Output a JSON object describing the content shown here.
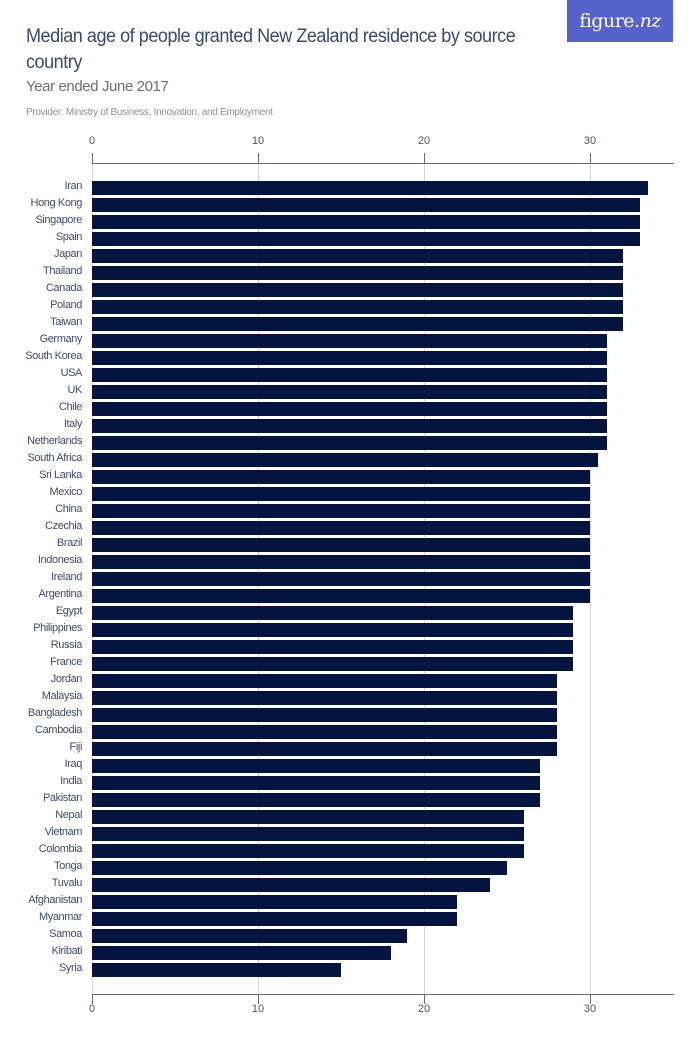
{
  "header": {
    "title": "Median age of people granted New Zealand residence by source country",
    "subtitle": "Year ended June 2017",
    "provider": "Provider: Ministry of Business, Innovation, and Employment",
    "logo_text": "figure.",
    "logo_text_italic": "nz"
  },
  "colors": {
    "bar": "#04143f",
    "logo_bg": "#5462c9",
    "title": "#3b4a66"
  },
  "axis": {
    "ticks": [
      "0",
      "10",
      "20",
      "30"
    ]
  },
  "chart_data": {
    "type": "bar",
    "orientation": "horizontal",
    "title": "Median age of people granted New Zealand residence by source country",
    "subtitle": "Year ended June 2017",
    "xlabel": "",
    "ylabel": "",
    "xlim": [
      0,
      35
    ],
    "x_ticks": [
      0,
      10,
      20,
      30
    ],
    "grid": true,
    "categories": [
      "Iran",
      "Hong Kong",
      "Singapore",
      "Spain",
      "Japan",
      "Thailand",
      "Canada",
      "Poland",
      "Taiwan",
      "Germany",
      "South Korea",
      "USA",
      "UK",
      "Chile",
      "Italy",
      "Netherlands",
      "South Africa",
      "Sri Lanka",
      "Mexico",
      "China",
      "Czechia",
      "Brazil",
      "Indonesia",
      "Ireland",
      "Argentina",
      "Egypt",
      "Philippines",
      "Russia",
      "France",
      "Jordan",
      "Malaysia",
      "Bangladesh",
      "Cambodia",
      "Fiji",
      "Iraq",
      "India",
      "Pakistan",
      "Nepal",
      "Vietnam",
      "Colombia",
      "Tonga",
      "Tuvalu",
      "Afghanistan",
      "Myanmar",
      "Samoa",
      "Kiribati",
      "Syria"
    ],
    "values": [
      33.5,
      33,
      33,
      33,
      32,
      32,
      32,
      32,
      32,
      31,
      31,
      31,
      31,
      31,
      31,
      31,
      30.5,
      30,
      30,
      30,
      30,
      30,
      30,
      30,
      30,
      29,
      29,
      29,
      29,
      28,
      28,
      28,
      28,
      28,
      27,
      27,
      27,
      26,
      26,
      26,
      25,
      24,
      22,
      22,
      19,
      18,
      15
    ]
  }
}
